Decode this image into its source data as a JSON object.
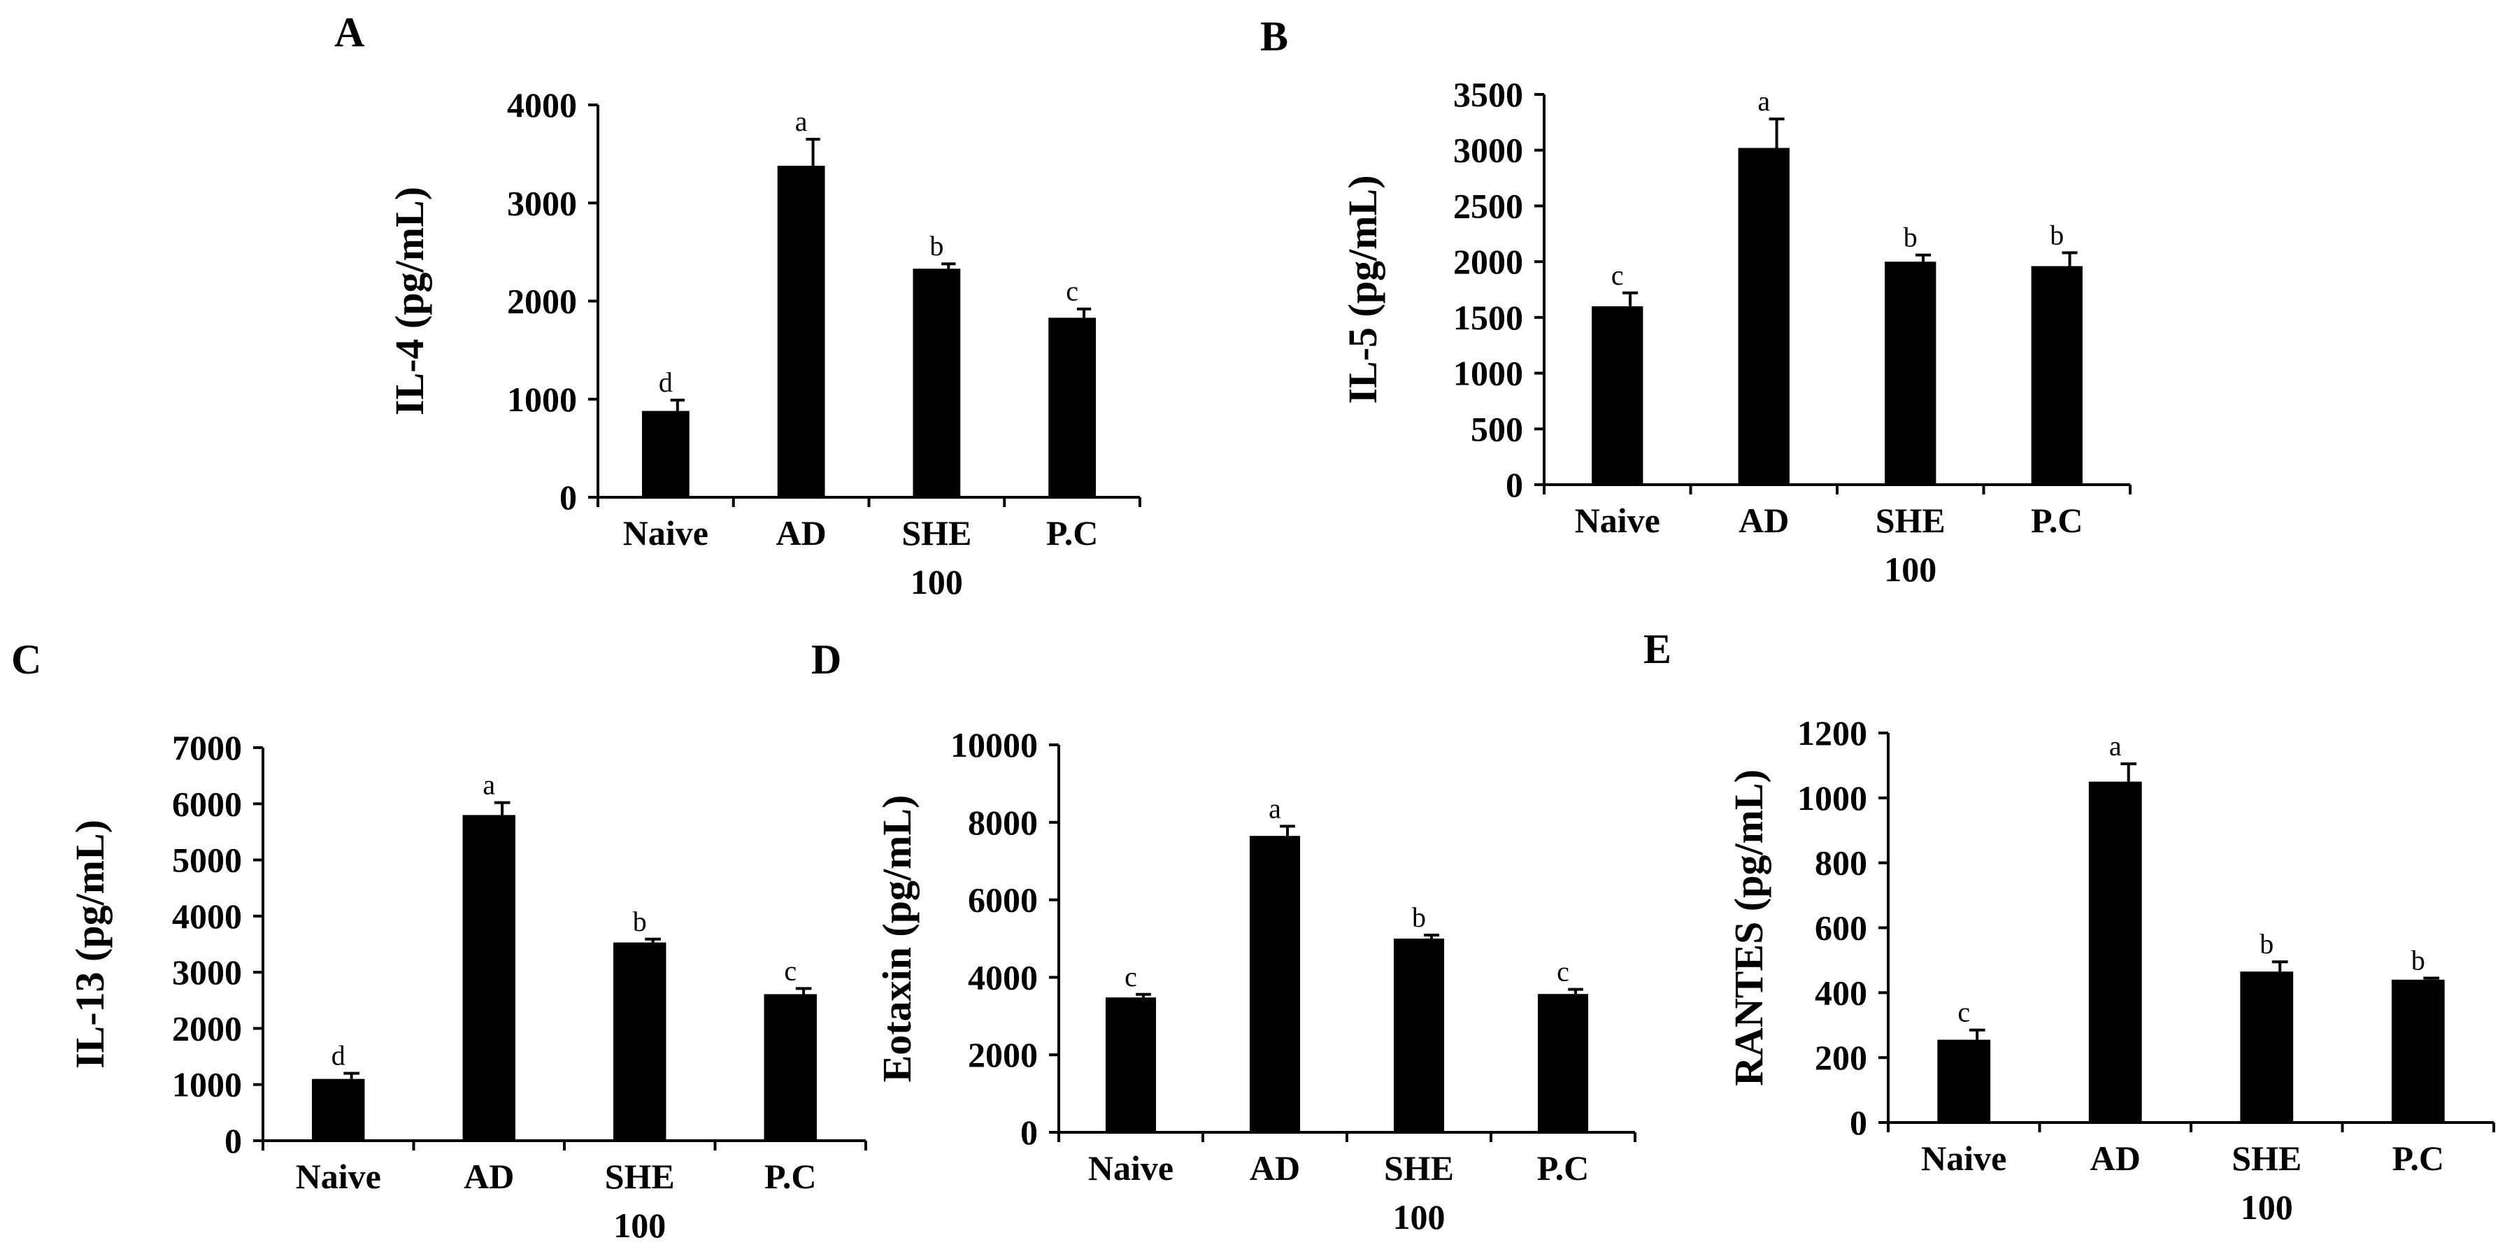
{
  "chart_data": [
    {
      "type": "bar",
      "panel": "A",
      "ylabel": "IL-4 (pg/mL)",
      "categories": [
        "Naive",
        "AD",
        "SHE|100",
        "P.C"
      ],
      "values": [
        880,
        3380,
        2330,
        1830
      ],
      "errors": [
        110,
        270,
        50,
        90
      ],
      "letters": [
        "d",
        "a",
        "b",
        "c"
      ],
      "ylim": [
        0,
        4000
      ],
      "yticks": [
        0,
        1000,
        2000,
        3000,
        4000
      ],
      "ytick_labels": [
        "0",
        "1000",
        "2000",
        "3000",
        "4000"
      ]
    },
    {
      "type": "bar",
      "panel": "B",
      "ylabel": "IL-5 (pg/mL)",
      "categories": [
        "Naive",
        "AD",
        "SHE|100",
        "P.C"
      ],
      "values": [
        1600,
        3020,
        2000,
        1960
      ],
      "errors": [
        120,
        260,
        60,
        120
      ],
      "letters": [
        "c",
        "a",
        "b",
        "b"
      ],
      "ylim": [
        0,
        3500
      ],
      "yticks": [
        0,
        500,
        1000,
        1500,
        2000,
        2500,
        3000,
        3500
      ],
      "ytick_labels": [
        "0",
        "500",
        "1000",
        "1500",
        "2000",
        "2500",
        "3000",
        "3500"
      ]
    },
    {
      "type": "bar",
      "panel": "C",
      "ylabel": "IL-13 (pg/mL)",
      "categories": [
        "Naive",
        "AD",
        "SHE|100",
        "P.C"
      ],
      "values": [
        1100,
        5800,
        3530,
        2610
      ],
      "errors": [
        100,
        220,
        60,
        100
      ],
      "letters": [
        "d",
        "a",
        "b",
        "c"
      ],
      "ylim": [
        0,
        7000
      ],
      "yticks": [
        0,
        1000,
        2000,
        3000,
        4000,
        5000,
        6000,
        7000
      ],
      "ytick_labels": [
        "0",
        "1000",
        "2000",
        "3000",
        "4000",
        "5000",
        "6000",
        "7000"
      ]
    },
    {
      "type": "bar",
      "panel": "D",
      "ylabel": "Eotaxin (pg/mL)",
      "categories": [
        "Naive",
        "AD",
        "SHE|100",
        "P.C"
      ],
      "values": [
        3480,
        7650,
        5000,
        3570
      ],
      "errors": [
        80,
        250,
        90,
        120
      ],
      "letters": [
        "c",
        "a",
        "b",
        "c"
      ],
      "ylim": [
        0,
        10000
      ],
      "yticks": [
        0,
        2000,
        4000,
        6000,
        8000,
        10000
      ],
      "ytick_labels": [
        "0",
        "2000",
        "4000",
        "6000",
        "8000",
        "10000"
      ]
    },
    {
      "type": "bar",
      "panel": "E",
      "ylabel": "RANTES (pg/mL)",
      "categories": [
        "Naive",
        "AD",
        "SHE|100",
        "P.C"
      ],
      "values": [
        255,
        1050,
        465,
        440
      ],
      "errors": [
        30,
        55,
        30,
        5
      ],
      "letters": [
        "c",
        "a",
        "b",
        "b"
      ],
      "ylim": [
        0,
        1200
      ],
      "yticks": [
        0,
        200,
        400,
        600,
        800,
        1000,
        1200
      ],
      "ytick_labels": [
        "0",
        "200",
        "400",
        "600",
        "800",
        "1000",
        "1200"
      ]
    }
  ]
}
